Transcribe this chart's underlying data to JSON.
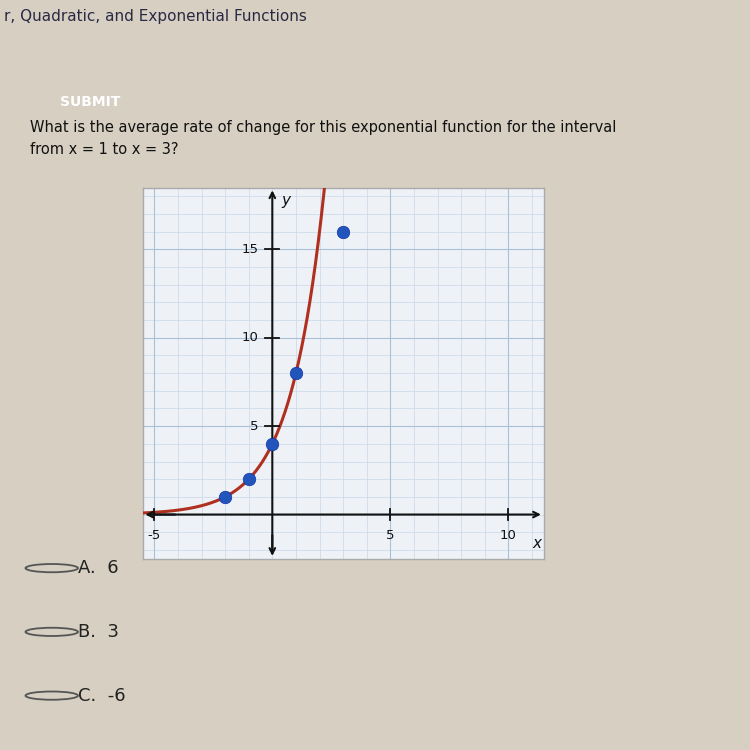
{
  "title_bar": "r, Quadratic, and Exponential Functions",
  "submit_label": "SUBMIT",
  "question": "What is the average rate of change for this exponential function for the interval\nfrom x = 1 to x = 3?",
  "choices": [
    "A.  6",
    "B.  3",
    "C.  -6"
  ],
  "bg_color": "#d6cfc2",
  "panel_color": "#e8e2d8",
  "header_bar_color": "#c8902a",
  "submit_bg": "#2b4fa0",
  "submit_text_color": "#ffffff",
  "graph_bg": "#eef2f7",
  "graph_border": "#aaaaaa",
  "curve_color": "#b03020",
  "dot_color": "#2255bb",
  "dot_points": [
    [
      -2,
      1
    ],
    [
      -1,
      2
    ],
    [
      0,
      4
    ],
    [
      1,
      8
    ]
  ],
  "highlight_dot": [
    3,
    16
  ],
  "xlim": [
    -5.5,
    11.5
  ],
  "ylim": [
    -2.5,
    18.5
  ],
  "xtick_major": [
    -5,
    5,
    10
  ],
  "ytick_major": [
    5,
    10,
    15
  ],
  "xlabel": "x",
  "ylabel": "y",
  "grid_color": "#aac0d8",
  "grid_minor_color": "#c8d8e8",
  "axis_color": "#111111"
}
